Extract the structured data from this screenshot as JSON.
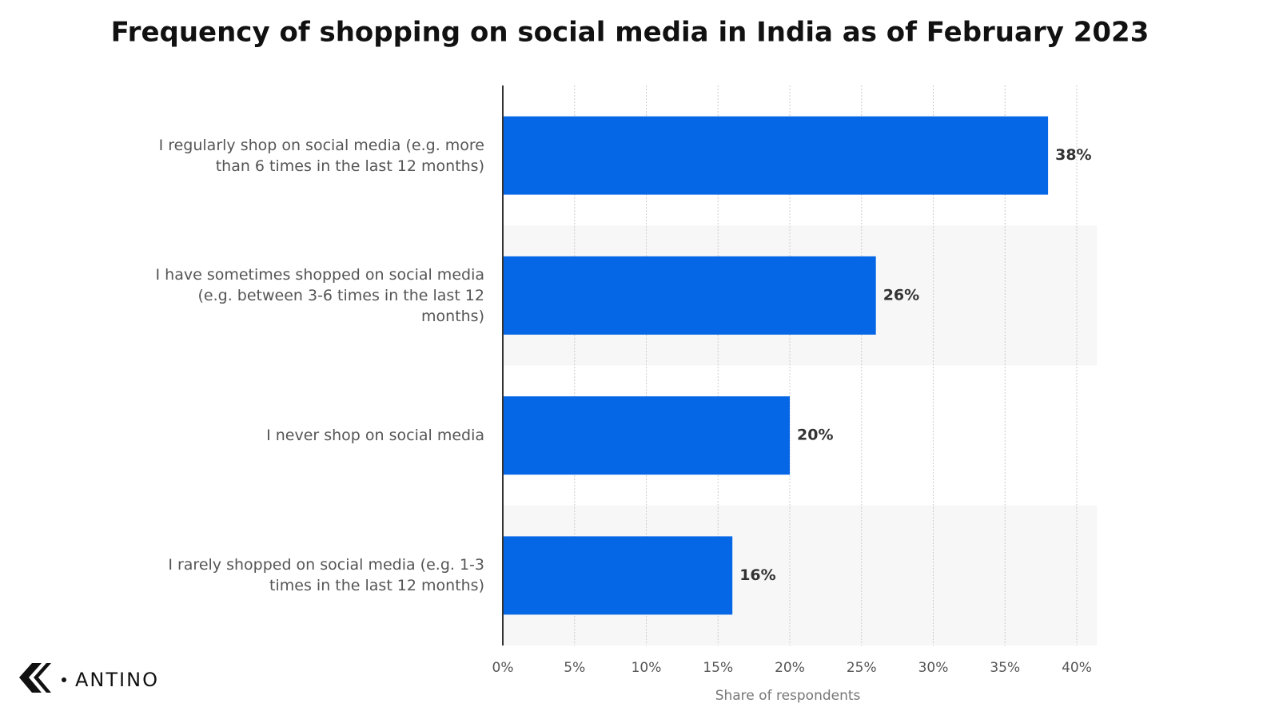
{
  "chart_data": {
    "type": "bar",
    "orientation": "horizontal",
    "title": "Frequency of shopping on social media in India as of February 2023",
    "categories": [
      "I regularly shop on social media (e.g. more than 6 times in the last 12 months)",
      "I have sometimes shopped on social media (e.g. between 3-6 times in the last 12 months)",
      "I never shop on social media",
      "I rarely shopped on social media (e.g. 1-3 times in the last 12 months)"
    ],
    "values": [
      38,
      26,
      20,
      16
    ],
    "value_labels": [
      "38%",
      "26%",
      "20%",
      "16%"
    ],
    "color": "#0667e6",
    "xlabel": "Share of respondents",
    "xlim": [
      0,
      41.4
    ],
    "xticks": [
      {
        "value": 0,
        "label": "0%"
      },
      {
        "value": 5,
        "label": "5%"
      },
      {
        "value": 10,
        "label": "10%"
      },
      {
        "value": 15,
        "label": "15%"
      },
      {
        "value": 20,
        "label": "20%"
      },
      {
        "value": 25,
        "label": "25%"
      },
      {
        "value": 30,
        "label": "30%"
      },
      {
        "value": 35,
        "label": "35%"
      },
      {
        "value": 40,
        "label": "40%"
      }
    ],
    "grid": true
  },
  "logo": "ANTINO"
}
